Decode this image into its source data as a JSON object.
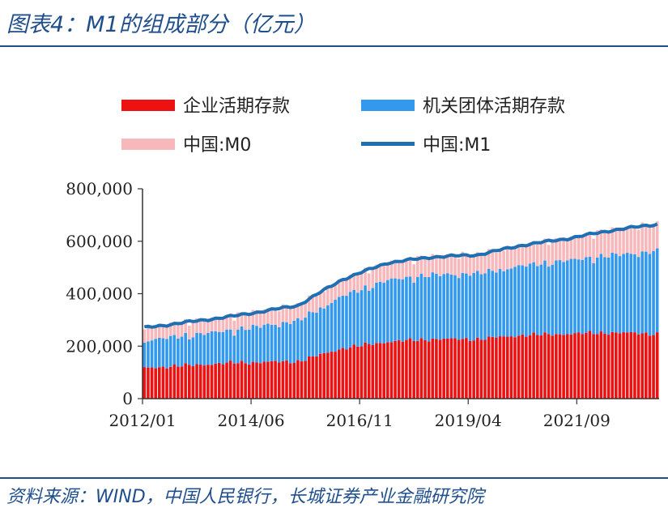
{
  "header": {
    "title": "图表4：M1的组成部分（亿元）"
  },
  "footer": {
    "source": "资料来源：WIND，中国人民银行，长城证券产业金融研究院"
  },
  "colors": {
    "enterprise": "#ee1111",
    "institution": "#3399ee",
    "m0": "#f7b8bc",
    "m1": "#1f6fb3",
    "header": "#1f4e8c"
  },
  "chart_data": {
    "type": "bar",
    "stacked": true,
    "title": "",
    "xlabel": "",
    "ylabel": "",
    "ylim": [
      0,
      800000
    ],
    "yticks": [
      "0",
      "200,000",
      "400,000",
      "600,000",
      "800,000"
    ],
    "xticks": [
      "2012/01",
      "2014/06",
      "2016/11",
      "2019/04",
      "2021/09"
    ],
    "legend_position": "top",
    "x_start": "2012/01",
    "x_end": "2023/06",
    "frequency": "monthly",
    "series": [
      {
        "name": "企业活期存款",
        "kind": "stacked-bar",
        "keypoints": [
          [
            "2012/01",
            115000
          ],
          [
            "2014/01",
            135000
          ],
          [
            "2015/06",
            140000
          ],
          [
            "2016/06",
            190000
          ],
          [
            "2017/06",
            215000
          ],
          [
            "2018/06",
            225000
          ],
          [
            "2019/06",
            225000
          ],
          [
            "2020/06",
            240000
          ],
          [
            "2021/06",
            245000
          ],
          [
            "2022/06",
            250000
          ],
          [
            "2023/06",
            245000
          ]
        ]
      },
      {
        "name": "机关团体活期存款",
        "kind": "stacked-bar",
        "keypoints": [
          [
            "2012/01",
            105000
          ],
          [
            "2014/01",
            125000
          ],
          [
            "2015/06",
            155000
          ],
          [
            "2016/06",
            200000
          ],
          [
            "2017/06",
            235000
          ],
          [
            "2018/06",
            245000
          ],
          [
            "2019/06",
            250000
          ],
          [
            "2020/06",
            265000
          ],
          [
            "2021/06",
            280000
          ],
          [
            "2022/06",
            295000
          ],
          [
            "2023/06",
            315000
          ]
        ]
      },
      {
        "name": "中国:M0",
        "kind": "stacked-bar",
        "keypoints": [
          [
            "2012/01",
            50000
          ],
          [
            "2014/01",
            55000
          ],
          [
            "2015/06",
            60000
          ],
          [
            "2016/06",
            65000
          ],
          [
            "2017/06",
            68000
          ],
          [
            "2018/06",
            70000
          ],
          [
            "2019/06",
            73000
          ],
          [
            "2020/06",
            80000
          ],
          [
            "2021/06",
            85000
          ],
          [
            "2022/06",
            97000
          ],
          [
            "2023/06",
            105000
          ]
        ]
      },
      {
        "name": "中国:M1",
        "kind": "line",
        "keypoints": [
          [
            "2012/01",
            270000
          ],
          [
            "2014/01",
            315000
          ],
          [
            "2015/06",
            355000
          ],
          [
            "2016/06",
            455000
          ],
          [
            "2017/06",
            518000
          ],
          [
            "2018/06",
            540000
          ],
          [
            "2019/06",
            548000
          ],
          [
            "2020/06",
            585000
          ],
          [
            "2021/06",
            610000
          ],
          [
            "2022/06",
            642000
          ],
          [
            "2023/06",
            665000
          ]
        ]
      }
    ]
  }
}
